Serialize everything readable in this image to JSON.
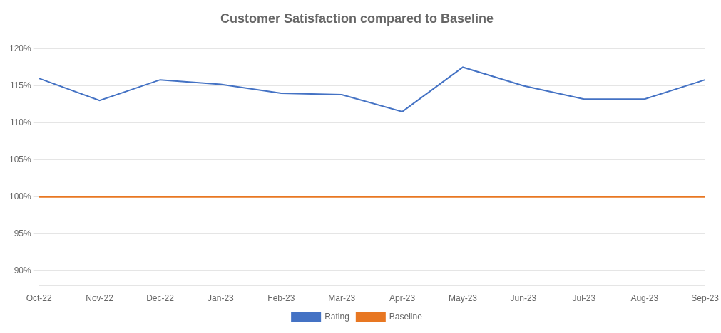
{
  "chart_data": {
    "type": "line",
    "title": "Customer Satisfaction compared to Baseline",
    "categories": [
      "Oct-22",
      "Nov-22",
      "Dec-22",
      "Jan-23",
      "Feb-23",
      "Mar-23",
      "Apr-23",
      "May-23",
      "Jun-23",
      "Jul-23",
      "Aug-23",
      "Sep-23"
    ],
    "series": [
      {
        "name": "Rating",
        "color": "#4472C4",
        "values": [
          116.0,
          113.0,
          115.8,
          115.2,
          114.0,
          113.8,
          111.5,
          117.5,
          115.0,
          113.2,
          113.2,
          115.8
        ]
      },
      {
        "name": "Baseline",
        "color": "#E87722",
        "values": [
          100,
          100,
          100,
          100,
          100,
          100,
          100,
          100,
          100,
          100,
          100,
          100
        ]
      }
    ],
    "ylim": [
      88,
      122
    ],
    "yticks": [
      {
        "value": 90,
        "label": "90%"
      },
      {
        "value": 95,
        "label": "95%"
      },
      {
        "value": 100,
        "label": "100%"
      },
      {
        "value": 105,
        "label": "105%"
      },
      {
        "value": 110,
        "label": "110%"
      },
      {
        "value": 115,
        "label": "115%"
      },
      {
        "value": 120,
        "label": "120%"
      }
    ],
    "grid": "y",
    "legend": "bottom",
    "marker": "none",
    "line_style": "solid"
  }
}
